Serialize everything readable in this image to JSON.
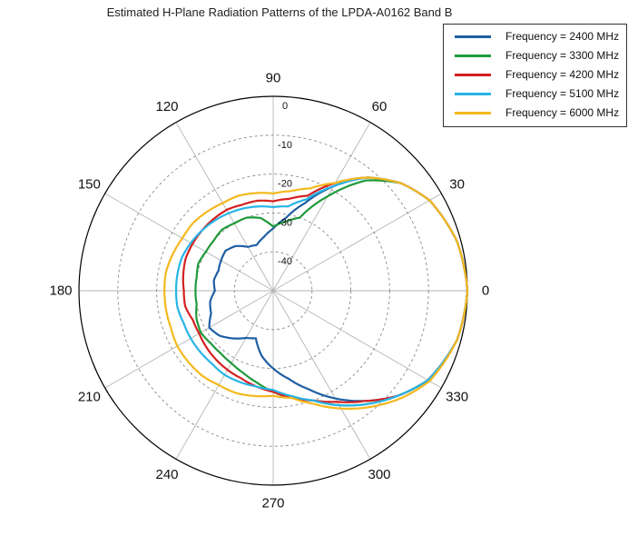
{
  "chart_data": {
    "type": "polar-line",
    "title": "Estimated H-Plane Radiation Patterns of the LPDA-A0162 Band B",
    "angle_ticks": [
      "0",
      "30",
      "60",
      "90",
      "120",
      "150",
      "180",
      "210",
      "240",
      "270",
      "300",
      "330"
    ],
    "radial_ticks": [
      "0",
      "-10",
      "-20",
      "-30",
      "-40"
    ],
    "rlim": [
      -50,
      0
    ],
    "angle_unit": "deg",
    "radial_unit": "dB",
    "grid": true,
    "legend_position": "top-right",
    "series": [
      {
        "name": "Frequency = 2400 MHz",
        "color": "#1f5fa3",
        "angles": [
          0,
          15,
          30,
          40,
          50,
          60,
          70,
          80,
          90,
          100,
          110,
          120,
          130,
          140,
          150,
          160,
          170,
          180,
          190,
          200,
          210,
          220,
          230,
          240,
          250,
          260,
          270,
          280,
          290,
          300,
          310,
          320,
          330,
          345
        ],
        "values": [
          0,
          -1,
          -3.5,
          -7,
          -12,
          -19,
          -26,
          -31,
          -34,
          -36,
          -37.5,
          -37,
          -35,
          -34,
          -34.5,
          -35,
          -34.5,
          -35,
          -33.5,
          -33,
          -31,
          -32,
          -34,
          -36,
          -37,
          -33,
          -30,
          -27,
          -23,
          -18,
          -13,
          -8,
          -4,
          -1
        ]
      },
      {
        "name": "Frequency = 3300 MHz",
        "color": "#1f9a3a",
        "angles": [
          0,
          15,
          30,
          40,
          50,
          60,
          70,
          80,
          90,
          100,
          110,
          120,
          130,
          140,
          150,
          160,
          170,
          180,
          190,
          200,
          210,
          220,
          230,
          240,
          250,
          260,
          270,
          280,
          290,
          300,
          310,
          320,
          330,
          345
        ],
        "values": [
          0,
          -1,
          -3.5,
          -7,
          -13,
          -22,
          -30,
          -32,
          -33.5,
          -31,
          -30,
          -30,
          -29.5,
          -30,
          -30,
          -29.5,
          -30,
          -30,
          -30,
          -29,
          -28.5,
          -29,
          -29,
          -28.5,
          -27.5,
          -26,
          -24,
          -22,
          -20,
          -16,
          -12,
          -8,
          -4,
          -1
        ]
      },
      {
        "name": "Frequency = 4200 MHz",
        "color": "#d42020",
        "angles": [
          0,
          15,
          30,
          40,
          50,
          60,
          70,
          80,
          90,
          100,
          110,
          120,
          130,
          140,
          150,
          160,
          170,
          180,
          190,
          200,
          210,
          220,
          230,
          240,
          250,
          260,
          270,
          280,
          290,
          300,
          310,
          320,
          330,
          345
        ],
        "values": [
          0,
          -1,
          -3.5,
          -7,
          -12,
          -18,
          -24,
          -26,
          -27,
          -26.5,
          -26.5,
          -26,
          -26,
          -26,
          -26,
          -26,
          -26.5,
          -27,
          -27,
          -28,
          -28,
          -27.5,
          -27,
          -26.5,
          -26,
          -25,
          -24,
          -22,
          -20,
          -17,
          -13,
          -8,
          -4,
          -1
        ]
      },
      {
        "name": "Frequency = 5100 MHz",
        "color": "#28b4e6",
        "angles": [
          0,
          15,
          30,
          40,
          50,
          60,
          70,
          80,
          90,
          100,
          110,
          120,
          130,
          140,
          150,
          160,
          170,
          180,
          190,
          200,
          210,
          220,
          230,
          240,
          250,
          260,
          270,
          280,
          290,
          300,
          310,
          320,
          330,
          345
        ],
        "values": [
          0,
          -1,
          -3.5,
          -7,
          -12,
          -19,
          -25,
          -28,
          -28.5,
          -28,
          -27.5,
          -27,
          -26.5,
          -26,
          -25.5,
          -25,
          -25,
          -25,
          -25,
          -25.5,
          -25.5,
          -25.5,
          -25.5,
          -25,
          -25,
          -25,
          -24.5,
          -22.5,
          -20,
          -16,
          -12,
          -8,
          -4,
          -1
        ]
      },
      {
        "name": "Frequency = 6000 MHz",
        "color": "#f5b81d",
        "angles": [
          0,
          15,
          30,
          40,
          50,
          60,
          70,
          80,
          90,
          100,
          110,
          120,
          130,
          140,
          150,
          160,
          170,
          180,
          190,
          200,
          210,
          220,
          230,
          240,
          250,
          260,
          270,
          280,
          290,
          300,
          310,
          320,
          330,
          345
        ],
        "values": [
          0,
          -1,
          -3.5,
          -7,
          -12,
          -18,
          -22,
          -24,
          -25,
          -24.5,
          -24,
          -24,
          -23.5,
          -23,
          -23,
          -22.5,
          -22,
          -22,
          -22,
          -22,
          -21.5,
          -21.5,
          -21.5,
          -22,
          -22,
          -22.5,
          -23,
          -22,
          -19,
          -15,
          -11,
          -7,
          -3.5,
          -1
        ]
      }
    ]
  }
}
